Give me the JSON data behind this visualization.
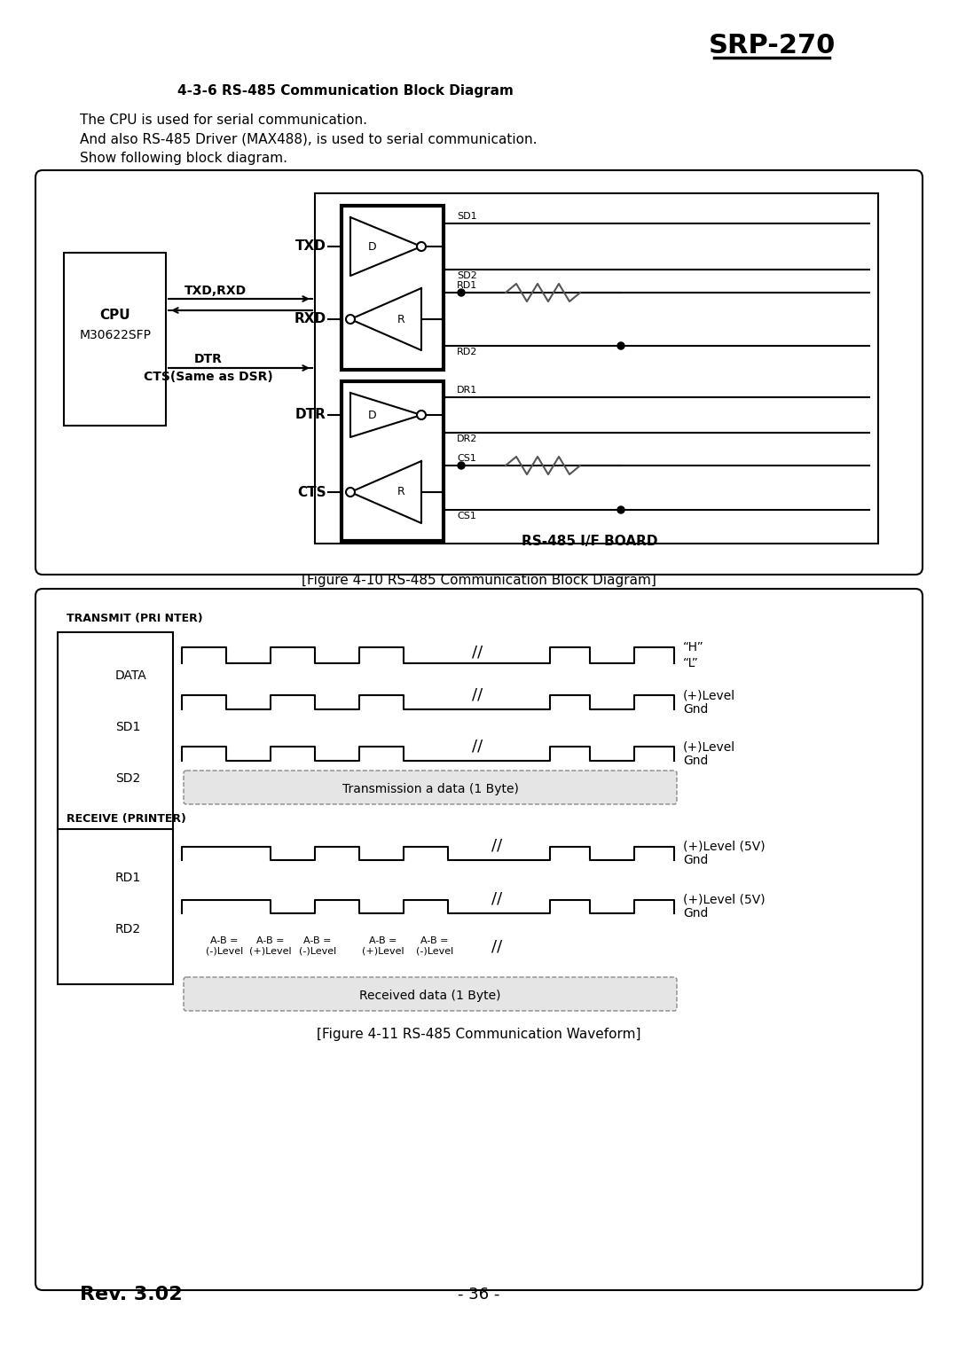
{
  "title": "SRP-270",
  "section_title": "4-3-6 RS-485 Communication Block Diagram",
  "paragraph1": "The CPU is used for serial communication.",
  "paragraph2": "And also RS-485 Driver (MAX488), is used to serial communication.",
  "paragraph3": "Show following block diagram.",
  "fig10_caption": "[Figure 4-10 RS-485 Communication Block Diagram]",
  "fig11_caption": "[Figure 4-11 RS-485 Communication Waveform]",
  "cpu_label": "CPU",
  "cpu_sub": "M30622SFP",
  "txd_rxd": "TXD,RXD",
  "dtr_label": "DTR",
  "cts_label": "CTS(Same as DSR)",
  "txd": "TXD",
  "rxd": "RXD",
  "dtr2": "DTR",
  "cts2": "CTS",
  "board_label": "RS-485 I/F BOARD",
  "sd1": "SD1",
  "sd2": "SD2",
  "rd1": "RD1",
  "rd2": "RD2",
  "dr1": "DR1",
  "dr2": "DR2",
  "cs1a": "CS1",
  "cs1b": "CS1",
  "transmit_label": "TRANSMIT (PRI NTER)",
  "receive_label": "RECEIVE (PRINTER)",
  "data_label": "DATA",
  "sd1_label": "SD1",
  "sd2_label": "SD2",
  "rd1_label": "RD1",
  "rd2_label": "RD2",
  "h_label": "“H”",
  "l_label": "“L”",
  "plus_level": "(+)Level",
  "gnd": "Gnd",
  "plus_level5v": "(+)Level (5V)",
  "trans_box_label": "Transmission a data (1 Byte)",
  "recv_box_label": "Received data (1 Byte)",
  "rev_label": "Rev. 3.02",
  "page_label": "- 36 -",
  "bg_color": "#ffffff"
}
